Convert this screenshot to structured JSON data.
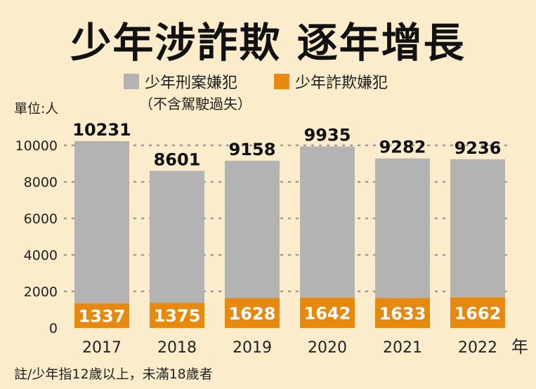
{
  "title": "少年涉詐欺 逐年增長",
  "unit_label": "單位:人",
  "footnote": "註/少年指12歲以上，未滿18歲者",
  "legend": {
    "total_label": "少年刑案嫌犯",
    "total_note": "（不含駕駛過失）",
    "fraud_label": "少年詐欺嫌犯"
  },
  "colors": {
    "total": "#b3b3b3",
    "fraud": "#e8890f",
    "background": "#fbeccb"
  },
  "x_unit": "年",
  "chart_data": {
    "type": "bar",
    "categories": [
      "2017",
      "2018",
      "2019",
      "2020",
      "2021",
      "2022"
    ],
    "series": [
      {
        "name": "少年刑案嫌犯",
        "values": [
          10231,
          8601,
          9158,
          9935,
          9282,
          9236
        ]
      },
      {
        "name": "少年詐欺嫌犯",
        "values": [
          1337,
          1375,
          1628,
          1642,
          1633,
          1662
        ]
      }
    ],
    "yticks": [
      "0",
      "2000",
      "4000",
      "6000",
      "8000",
      "10000"
    ],
    "ylim": [
      0,
      10000
    ],
    "grid": true,
    "legend_position": "top"
  }
}
